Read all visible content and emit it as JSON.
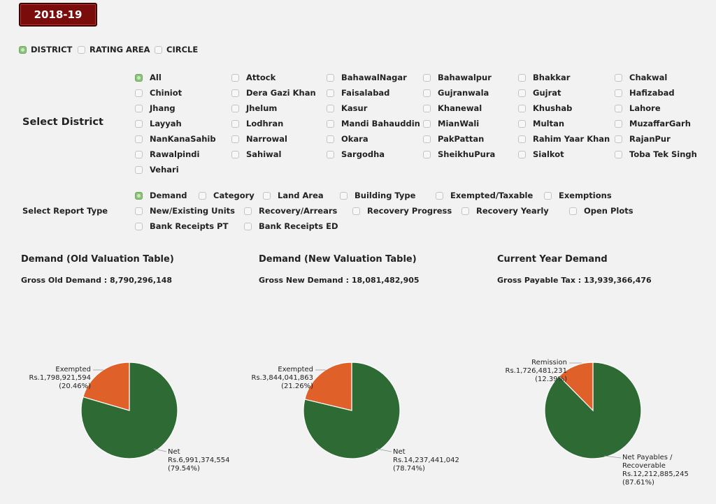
{
  "year": "2018-19",
  "level_options": [
    {
      "label": "DISTRICT",
      "checked": true
    },
    {
      "label": "RATING AREA",
      "checked": false
    },
    {
      "label": "CIRCLE",
      "checked": false
    }
  ],
  "district_section": {
    "label": "Select District",
    "options": [
      {
        "label": "All",
        "checked": true
      },
      {
        "label": "Attock"
      },
      {
        "label": "BahawalNagar"
      },
      {
        "label": "Bahawalpur"
      },
      {
        "label": "Bhakkar"
      },
      {
        "label": "Chakwal"
      },
      {
        "label": "Chiniot"
      },
      {
        "label": "Dera Gazi Khan"
      },
      {
        "label": "Faisalabad"
      },
      {
        "label": "Gujranwala"
      },
      {
        "label": "Gujrat"
      },
      {
        "label": "Hafizabad"
      },
      {
        "label": "Jhang"
      },
      {
        "label": "Jhelum"
      },
      {
        "label": "Kasur"
      },
      {
        "label": "Khanewal"
      },
      {
        "label": "Khushab"
      },
      {
        "label": "Lahore"
      },
      {
        "label": "Layyah"
      },
      {
        "label": "Lodhran"
      },
      {
        "label": "Mandi Bahauddin"
      },
      {
        "label": "MianWali"
      },
      {
        "label": "Multan"
      },
      {
        "label": "MuzaffarGarh"
      },
      {
        "label": "NanKanaSahib"
      },
      {
        "label": "Narrowal"
      },
      {
        "label": "Okara"
      },
      {
        "label": "PakPattan"
      },
      {
        "label": "Rahim Yaar Khan"
      },
      {
        "label": "RajanPur"
      },
      {
        "label": "Rawalpindi"
      },
      {
        "label": "Sahiwal"
      },
      {
        "label": "Sargodha"
      },
      {
        "label": "SheikhuPura"
      },
      {
        "label": "Sialkot"
      },
      {
        "label": "Toba Tek Singh"
      },
      {
        "label": "Vehari"
      }
    ]
  },
  "report_section": {
    "label": "Select Report Type",
    "options": [
      {
        "label": "Demand",
        "checked": true
      },
      {
        "label": "Category"
      },
      {
        "label": "Land Area"
      },
      {
        "label": "Building Type"
      },
      {
        "label": "Exempted/Taxable"
      },
      {
        "label": "Exemptions"
      },
      {
        "label": "New/Existing Units"
      },
      {
        "label": "Recovery/Arrears"
      },
      {
        "label": "Recovery Progress"
      },
      {
        "label": "Recovery Yearly"
      },
      {
        "label": "Open Plots"
      },
      {
        "label": "Bank Receipts PT"
      },
      {
        "label": "Bank Receipts ED"
      }
    ]
  },
  "panels": [
    {
      "title": "Demand (Old Valuation Table)",
      "subtitle": "Gross Old Demand : 8,790,296,148"
    },
    {
      "title": "Demand (New Valuation Table)",
      "subtitle": "Gross New Demand : 18,081,482,905"
    },
    {
      "title": "Current Year Demand",
      "subtitle": "Gross Payable Tax : 13,939,366,476"
    }
  ],
  "colors": {
    "green": "#2e6b34",
    "orange": "#e0602a"
  },
  "chart_data": [
    {
      "type": "pie",
      "slices": [
        {
          "name": "Exempted",
          "value": 1798921594,
          "value_label": "Rs.1,798,921,594",
          "pct_label": "(20.46%)",
          "color": "#e0602a"
        },
        {
          "name": "Net",
          "value": 6991374554,
          "value_label": "Rs.6,991,374,554",
          "pct_label": "(79.54%)",
          "color": "#2e6b34"
        }
      ]
    },
    {
      "type": "pie",
      "slices": [
        {
          "name": "Exempted",
          "value": 3844041863,
          "value_label": "Rs.3,844,041,863",
          "pct_label": "(21.26%)",
          "color": "#e0602a"
        },
        {
          "name": "Net",
          "value": 14237441042,
          "value_label": "Rs.14,237,441,042",
          "pct_label": "(78.74%)",
          "color": "#2e6b34"
        }
      ]
    },
    {
      "type": "pie",
      "slices": [
        {
          "name": "Remission",
          "value": 1726481231,
          "value_label": "Rs.1,726,481,231",
          "pct_label": "(12.39%)",
          "color": "#e0602a"
        },
        {
          "name": "Net Payables / Recoverable",
          "name_lines": [
            "Net Payables /",
            "Recoverable"
          ],
          "value": 12212885245,
          "value_label": "Rs.12,212,885,245",
          "pct_label": "(87.61%)",
          "color": "#2e6b34"
        }
      ]
    }
  ]
}
